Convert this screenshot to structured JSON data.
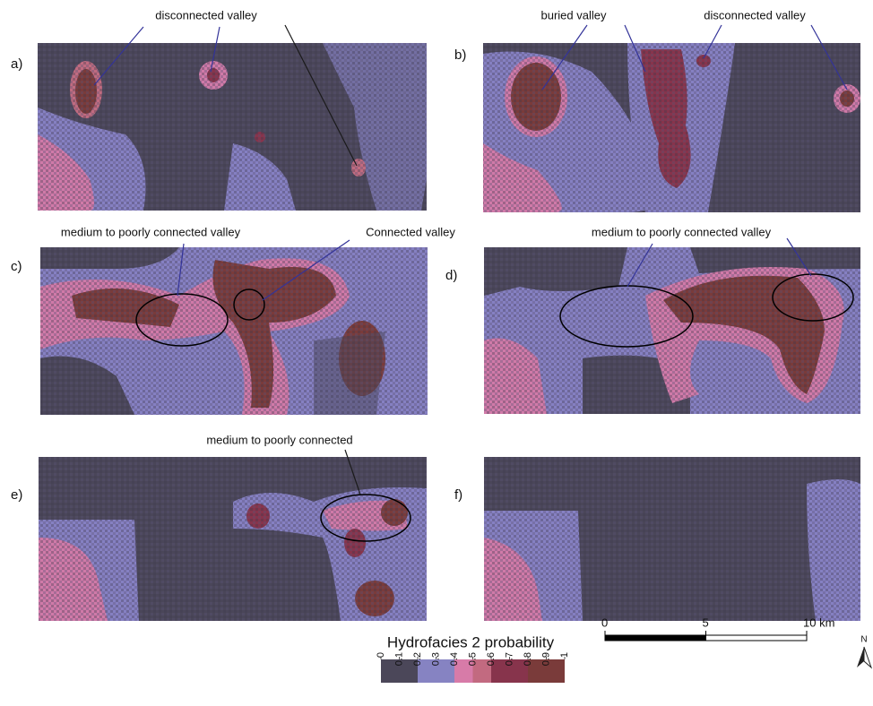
{
  "panels": [
    {
      "label": "a)",
      "annotations": [
        "disconnected valley"
      ]
    },
    {
      "label": "b)",
      "annotations": [
        "buried valley",
        "disconnected valley"
      ]
    },
    {
      "label": "c)",
      "annotations": [
        "medium to poorly connected valley",
        "Connected valley"
      ]
    },
    {
      "label": "d)",
      "annotations": [
        "medium to poorly connected valley"
      ]
    },
    {
      "label": "e)",
      "annotations": [
        "medium to poorly connected"
      ]
    },
    {
      "label": "f)",
      "annotations": []
    }
  ],
  "legend": {
    "title": "Hydrofacies 2 probability",
    "ticks": [
      0,
      0.1,
      0.2,
      0.3,
      0.4,
      0.5,
      0.6,
      0.7,
      0.8,
      0.9,
      1
    ],
    "classes": [
      {
        "from": 0,
        "to": 0.2,
        "color": "#4b4759"
      },
      {
        "from": 0.2,
        "to": 0.4,
        "color": "#8683c2"
      },
      {
        "from": 0.4,
        "to": 0.5,
        "color": "#d77ba8"
      },
      {
        "from": 0.5,
        "to": 0.6,
        "color": "#c26a80"
      },
      {
        "from": 0.6,
        "to": 0.8,
        "color": "#87344c"
      },
      {
        "from": 0.8,
        "to": 1,
        "color": "#7a3b3a"
      }
    ]
  },
  "scale_bar": {
    "ticks": [
      0,
      5,
      {
        "value": 10,
        "label": "10 km"
      }
    ]
  },
  "north": "N"
}
